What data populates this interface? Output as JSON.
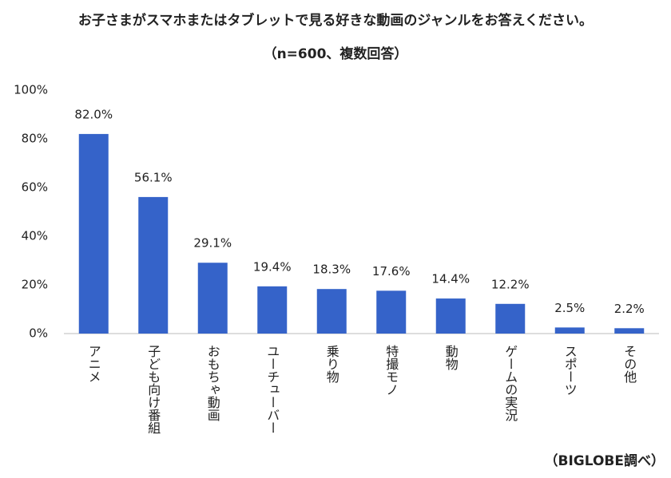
{
  "chart_data": {
    "type": "bar",
    "title": "お子さまがスマホまたはタブレットで見る好きな動画のジャンルをお答えください。",
    "subtitle": "（n=600、複数回答）",
    "note": "（BIGLOBE調べ）",
    "categories": [
      "アニメ",
      "子ども向け番組",
      "おもちゃ動画",
      "ユーチューバー",
      "乗り物",
      "特撮モノ",
      "動物",
      "ゲームの実況",
      "スポーツ",
      "その他"
    ],
    "values": [
      82.0,
      56.1,
      29.1,
      19.4,
      18.3,
      17.6,
      14.4,
      12.2,
      2.5,
      2.2
    ],
    "value_labels": [
      "82.0%",
      "56.1%",
      "29.1%",
      "19.4%",
      "18.3%",
      "17.6%",
      "14.4%",
      "12.2%",
      "2.5%",
      "2.2%"
    ],
    "color": "#3563c9",
    "ylim": [
      0,
      100
    ],
    "yticks": [
      {
        "value": 0,
        "label": "0%"
      },
      {
        "value": 20,
        "label": "20%"
      },
      {
        "value": 40,
        "label": "40%"
      },
      {
        "value": 60,
        "label": "60%"
      },
      {
        "value": 80,
        "label": "80%"
      },
      {
        "value": 100,
        "label": "100%"
      }
    ],
    "grid": false
  }
}
